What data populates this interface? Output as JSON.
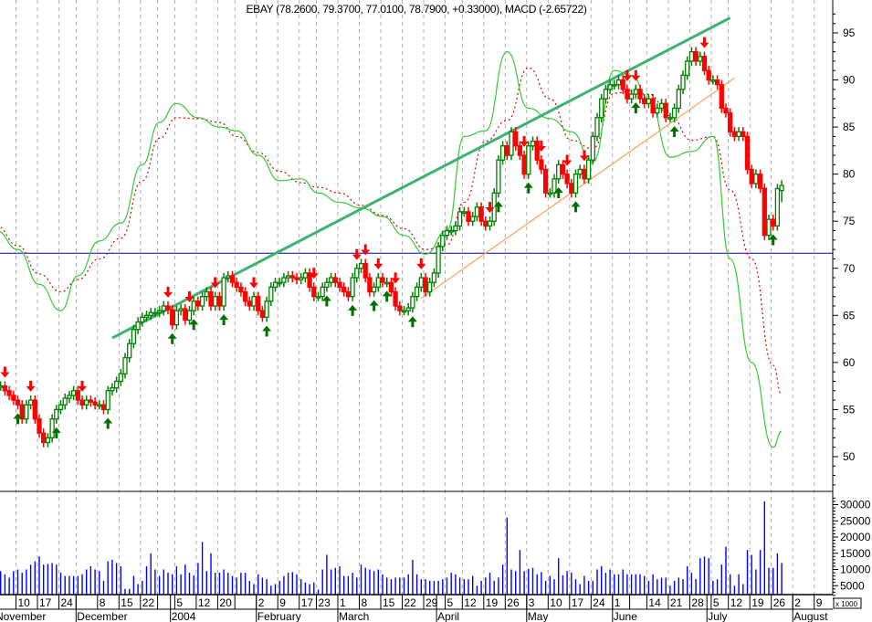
{
  "chart_data": {
    "type": "candlestick",
    "title": "EBAY (78.2600, 79.3700, 77.0100, 78.7900, +0.33000), MACD (-2.65722)",
    "price_axis": {
      "ticks": [
        50,
        55,
        60,
        65,
        70,
        75,
        80,
        85,
        90,
        95
      ],
      "range": [
        46.5,
        97.5
      ],
      "side": "right"
    },
    "volume_axis": {
      "ticks": [
        5000,
        10000,
        15000,
        20000,
        25000,
        30000
      ],
      "unit_label": "x 1000"
    },
    "grid": "vertical dashed weekly",
    "colors": {
      "up": "#008000",
      "down": "#ff0000",
      "volume": "#0000ff",
      "indicator_solid": "#33cc33",
      "indicator_dashed": "#e00000",
      "trendline_upper": "#3cb371",
      "trendline_lower": "#ffa050",
      "horizontal_line": "#0000aa",
      "grid": "#b0b0b0"
    },
    "weeks": [
      {
        "w": "Nov 3",
        "tick": "",
        "days": 5,
        "c": [
          57.5,
          57.5,
          57,
          56.5,
          56
        ],
        "v": [
          8,
          9.5,
          8.5,
          7.5,
          9.5
        ],
        "g": 74,
        "r": 74.5
      },
      {
        "w": "Nov 10",
        "tick": "10",
        "days": 5,
        "c": [
          55.5,
          54,
          55.5,
          56,
          54
        ],
        "v": [
          10,
          9,
          10,
          11.5,
          12.5
        ],
        "g": 72,
        "r": 72.4
      },
      {
        "w": "Nov 17",
        "tick": "17",
        "days": 5,
        "c": [
          52.5,
          51.5,
          52,
          54,
          55
        ],
        "v": [
          14,
          11.5,
          11.7,
          12,
          11.5
        ],
        "g": 68.3,
        "r": 69.4
      },
      {
        "w": "Nov 24",
        "tick": "24",
        "days": 4,
        "c": [
          55.5,
          56.2,
          56.5,
          57
        ],
        "v": [
          9,
          8,
          8,
          8
        ],
        "g": 65.5,
        "r": 67.5
      },
      {
        "w": "Dec 1",
        "tick": "",
        "days": 5,
        "c": [
          56,
          55.5,
          56,
          55.8,
          55.5
        ],
        "v": [
          8,
          8.5,
          10,
          11,
          10
        ],
        "g": 69.2,
        "r": 68.8
      },
      {
        "w": "Dec 8",
        "tick": "8",
        "days": 5,
        "c": [
          55.5,
          55,
          57,
          57.3,
          58
        ],
        "v": [
          9.5,
          6.5,
          12.5,
          13,
          12
        ],
        "g": 72.9,
        "r": 71
      },
      {
        "w": "Dec 15",
        "tick": "15",
        "days": 5,
        "c": [
          58.8,
          60.5,
          62,
          63.5,
          64.3
        ],
        "v": [
          11,
          4,
          4,
          8,
          5.5
        ],
        "g": 74.8,
        "r": 73.2
      },
      {
        "w": "Dec 22",
        "tick": "22",
        "days": 4,
        "c": [
          64.8,
          65,
          65.3,
          65.3
        ],
        "v": [
          6.5,
          11,
          15,
          10
        ],
        "g": 81,
        "r": 79.3
      },
      {
        "w": "Dec 29",
        "tick": "",
        "days": 4,
        "c": [
          65.5,
          66,
          65.6,
          64
        ],
        "v": [
          8,
          10,
          9,
          8.5
        ],
        "g": 85.5,
        "r": 83.8
      },
      {
        "w": "Jan 5",
        "tick": "5",
        "days": 5,
        "c": [
          65.5,
          65.7,
          64.5,
          65.5,
          66.5
        ],
        "v": [
          11,
          8.5,
          11.5,
          9,
          8.2
        ],
        "g": 87.5,
        "r": 86
      },
      {
        "w": "Jan 12",
        "tick": "12",
        "days": 5,
        "c": [
          66,
          67,
          67.5,
          66,
          67
        ],
        "v": [
          12,
          18.5,
          9.5,
          15,
          9
        ],
        "g": 86,
        "r": 85.9
      },
      {
        "w": "Jan 20",
        "tick": "20",
        "days": 4,
        "c": [
          66,
          69,
          69.2,
          68.5
        ],
        "v": [
          9,
          10,
          9,
          8
        ],
        "g": 85,
        "r": 85.5
      },
      {
        "w": "Jan 26",
        "tick": "",
        "days": 5,
        "c": [
          68,
          67.5,
          66.5,
          66,
          67
        ],
        "v": [
          7.5,
          9,
          9,
          6.5,
          5.5
        ],
        "g": 84.6,
        "r": 84
      },
      {
        "w": "Feb 2",
        "tick": "2",
        "days": 5,
        "c": [
          65.5,
          64.8,
          66.5,
          68,
          68.5
        ],
        "v": [
          8.5,
          7.5,
          7,
          5,
          5.5
        ],
        "g": 82,
        "r": 82.3
      },
      {
        "w": "Feb 9",
        "tick": "9",
        "days": 5,
        "c": [
          68.5,
          69,
          69.2,
          69,
          68.8
        ],
        "v": [
          6.5,
          8,
          9,
          9.2,
          8.5
        ],
        "g": 79.3,
        "r": 80.3
      },
      {
        "w": "Feb 17",
        "tick": "17",
        "days": 4,
        "c": [
          69,
          69.5,
          68,
          67
        ],
        "v": [
          7,
          6,
          5.5,
          6
        ],
        "g": 79.5,
        "r": 79.1
      },
      {
        "w": "Feb 23",
        "tick": "23",
        "days": 5,
        "c": [
          67,
          68,
          68.5,
          69,
          68.5
        ],
        "v": [
          3.8,
          10,
          14.5,
          10,
          10.5
        ],
        "g": 78,
        "r": 78.6
      },
      {
        "w": "Mar 1",
        "tick": "1",
        "days": 5,
        "c": [
          68,
          67.5,
          67,
          69,
          70
        ],
        "v": [
          11,
          8,
          8,
          9,
          7.5
        ],
        "g": 77,
        "r": 78
      },
      {
        "w": "Mar 8",
        "tick": "8",
        "days": 5,
        "c": [
          70.5,
          69,
          67.5,
          68,
          69
        ],
        "v": [
          11.5,
          10.5,
          10,
          9.5,
          10
        ],
        "g": 76.4,
        "r": 76.7
      },
      {
        "w": "Mar 15",
        "tick": "15",
        "days": 5,
        "c": [
          68.5,
          68.5,
          67.5,
          66,
          65.5
        ],
        "v": [
          8.5,
          7.5,
          7,
          7.5,
          7.5
        ],
        "g": 75.5,
        "r": 75.6
      },
      {
        "w": "Mar 22",
        "tick": "22",
        "days": 5,
        "c": [
          65.5,
          65.8,
          67,
          68,
          69
        ],
        "v": [
          7.5,
          8.5,
          13,
          8.5,
          7
        ],
        "g": 73.5,
        "r": 74.2
      },
      {
        "w": "Mar 29",
        "tick": "29",
        "days": 5,
        "c": [
          67.5,
          68.5,
          69.5,
          72.3,
          73.5
        ],
        "v": [
          7,
          6.5,
          6.5,
          6.5,
          7
        ],
        "g": 71.5,
        "r": 72
      },
      {
        "w": "Apr 5",
        "tick": "5",
        "days": 4,
        "c": [
          74,
          74,
          74.5,
          76
        ],
        "v": [
          7.5,
          9,
          8.5,
          7.5
        ],
        "g": 74,
        "r": 72.5
      },
      {
        "w": "Apr 12",
        "tick": "12",
        "days": 5,
        "c": [
          76,
          75,
          75.5,
          76.5,
          75
        ],
        "v": [
          7,
          7,
          8,
          5,
          6.5
        ],
        "g": 84,
        "r": 77
      },
      {
        "w": "Apr 19",
        "tick": "19",
        "days": 5,
        "c": [
          74.5,
          75,
          78,
          81.5,
          83
        ],
        "v": [
          7.5,
          9,
          6.5,
          7.5,
          11.5
        ],
        "g": 84.6,
        "r": 83.5
      },
      {
        "w": "Apr 26",
        "tick": "26",
        "days": 5,
        "c": [
          82,
          84.5,
          83,
          82,
          80
        ],
        "v": [
          26,
          10,
          9.5,
          16,
          9.5
        ],
        "g": 93,
        "r": 85.7
      },
      {
        "w": "May 3",
        "tick": "3",
        "days": 5,
        "c": [
          83,
          83.5,
          81.5,
          80.5,
          78
        ],
        "v": [
          10.2,
          10.5,
          8.5,
          9.2,
          6.5
        ],
        "g": 87,
        "r": 91.3
      },
      {
        "w": "May 10",
        "tick": "10",
        "days": 5,
        "c": [
          78,
          79.5,
          81,
          80,
          79
        ],
        "v": [
          8,
          7,
          13.5,
          8.2,
          9.5
        ],
        "g": 85.9,
        "r": 88
      },
      {
        "w": "May 17",
        "tick": "17",
        "days": 5,
        "c": [
          78,
          80,
          80.5,
          79.5,
          81.5
        ],
        "v": [
          9,
          7,
          5.5,
          8,
          6.5
        ],
        "g": 84.5,
        "r": 83.6
      },
      {
        "w": "May 24",
        "tick": "24",
        "days": 5,
        "c": [
          84,
          86,
          88,
          89,
          89.5
        ],
        "v": [
          6.5,
          10,
          11,
          9,
          10
        ],
        "g": 81.3,
        "r": 82.7
      },
      {
        "w": "Jun 1",
        "tick": "1",
        "days": 4,
        "c": [
          89.5,
          90,
          89,
          88
        ],
        "v": [
          8.5,
          8.5,
          10,
          8.5
        ],
        "g": 91,
        "r": 88.6
      },
      {
        "w": "Jun 7",
        "tick": "",
        "days": 4,
        "c": [
          88.5,
          89,
          88,
          87.5
        ],
        "v": [
          8.5,
          8.5,
          8.5,
          8
        ],
        "g": 90.5,
        "r": 88.8
      },
      {
        "w": "Jun 14",
        "tick": "14",
        "days": 5,
        "c": [
          88,
          86.5,
          87,
          87.5,
          86
        ],
        "v": [
          6.5,
          8.5,
          7,
          7.5,
          7.5
        ],
        "g": 88,
        "r": 88.5
      },
      {
        "w": "Jun 21",
        "tick": "21",
        "days": 5,
        "c": [
          86,
          87,
          89,
          90.5,
          92
        ],
        "v": [
          5,
          6.5,
          7.5,
          7,
          11
        ],
        "g": 81.8,
        "r": 86.2
      },
      {
        "w": "Jun 28",
        "tick": "28",
        "days": 5,
        "c": [
          93,
          92,
          92.5,
          91,
          90
        ],
        "v": [
          9,
          7,
          13.5,
          14,
          13.5
        ],
        "g": 82.4,
        "r": 83.6
      },
      {
        "w": "Jul 5",
        "tick": "5",
        "days": 4,
        "c": [
          90,
          89.5,
          87,
          86.5
        ],
        "v": [
          6.5,
          7,
          11.5,
          17
        ],
        "g": 84,
        "r": 84
      },
      {
        "w": "Jul 12",
        "tick": "12",
        "days": 5,
        "c": [
          84.5,
          84,
          84.5,
          84,
          80.5
        ],
        "v": [
          8.5,
          5,
          8.5,
          5.5,
          16
        ],
        "g": 71,
        "r": 78.3
      },
      {
        "w": "Jul 19",
        "tick": "19",
        "days": 5,
        "c": [
          79,
          80,
          78.5,
          73.5,
          75.2
        ],
        "v": [
          14.5,
          10,
          16,
          31,
          10.5
        ],
        "g": 60,
        "r": 71
      },
      {
        "w": "Jul 26",
        "tick": "26",
        "days": 5,
        "c": [
          74.5,
          78.46,
          78.79
        ],
        "v": [
          10.5,
          15,
          12
        ],
        "g": 51,
        "r": 59.7
      },
      {
        "w": "Aug 2",
        "tick": "2",
        "days": 5,
        "c": [],
        "v": []
      },
      {
        "w": "Aug 9",
        "tick": "9",
        "days": 5,
        "c": [],
        "v": []
      }
    ],
    "last_bar": {
      "open": 78.26,
      "high": 79.37,
      "low": 77.01,
      "close": 78.79
    },
    "indicator_end": {
      "g": 52.7,
      "r": 56.6
    },
    "months": [
      {
        "label": "November",
        "w": "Nov 3",
        "d": 0
      },
      {
        "label": "December",
        "w": "Dec 1",
        "d": 0
      },
      {
        "label": "2004",
        "w": "Dec 29",
        "d": 3
      },
      {
        "label": "February",
        "w": "Feb 2",
        "d": 0
      },
      {
        "label": "March",
        "w": "Mar 1",
        "d": 0
      },
      {
        "label": "April",
        "w": "Mar 29",
        "d": 3
      },
      {
        "label": "May",
        "w": "May 3",
        "d": 0
      },
      {
        "label": "June",
        "w": "Jun 1",
        "d": 0
      },
      {
        "label": "July",
        "w": "Jun 28",
        "d": 4
      },
      {
        "label": "August",
        "w": "Aug 2",
        "d": 0
      }
    ],
    "signals": [
      [
        "Nov 3",
        2,
        "sell"
      ],
      [
        "Nov 10",
        3,
        "sell"
      ],
      [
        "Dec 1",
        1,
        "sell"
      ],
      [
        "Dec 29",
        2,
        "sell"
      ],
      [
        "Jan 5",
        3,
        "sell"
      ],
      [
        "Jan 12",
        4,
        "sell"
      ],
      [
        "Jan 26",
        4,
        "sell"
      ],
      [
        "Feb 17",
        3,
        "sell"
      ],
      [
        "Mar 1",
        4,
        "sell"
      ],
      [
        "Mar 8",
        1,
        "sell"
      ],
      [
        "Mar 8",
        4,
        "sell"
      ],
      [
        "Mar 15",
        3,
        "sell"
      ],
      [
        "Mar 22",
        4,
        "sell"
      ],
      [
        "Apr 19",
        1,
        "sell"
      ],
      [
        "Apr 26",
        4,
        "sell"
      ],
      [
        "May 3",
        3,
        "sell"
      ],
      [
        "May 10",
        4,
        "sell"
      ],
      [
        "May 17",
        3,
        "sell"
      ],
      [
        "Jun 1",
        3,
        "sell"
      ],
      [
        "Jun 7",
        1,
        "sell"
      ],
      [
        "Jun 28",
        3,
        "sell"
      ],
      [
        "Nov 10",
        0,
        "buy"
      ],
      [
        "Nov 17",
        4,
        "buy"
      ],
      [
        "Dec 8",
        2,
        "buy"
      ],
      [
        "Dec 29",
        3,
        "buy"
      ],
      [
        "Jan 5",
        4,
        "buy"
      ],
      [
        "Jan 20",
        1,
        "buy"
      ],
      [
        "Feb 2",
        2,
        "buy"
      ],
      [
        "Feb 23",
        2,
        "buy"
      ],
      [
        "Mar 1",
        3,
        "buy"
      ],
      [
        "Mar 8",
        3,
        "buy"
      ],
      [
        "Mar 15",
        1,
        "buy"
      ],
      [
        "Mar 22",
        2,
        "buy"
      ],
      [
        "Apr 19",
        3,
        "buy"
      ],
      [
        "May 3",
        0,
        "buy"
      ],
      [
        "May 10",
        2,
        "buy"
      ],
      [
        "May 17",
        1,
        "buy"
      ],
      [
        "Jun 7",
        1,
        "buy"
      ],
      [
        "Jun 21",
        1,
        "buy"
      ],
      [
        "Jul 26",
        0,
        "buy"
      ]
    ],
    "trendlines": [
      {
        "kind": "upper",
        "from": {
          "w": "Dec 8",
          "d": 3,
          "p": 62.6
        },
        "to": {
          "w": "Jul 12",
          "d": 0,
          "p": 96.6
        }
      },
      {
        "kind": "lower",
        "from": {
          "w": "Mar 22",
          "d": 4,
          "p": 66.8
        },
        "to": {
          "w": "Jul 12",
          "d": 1,
          "p": 90.2
        }
      }
    ],
    "horizontal_line": 71.6
  }
}
